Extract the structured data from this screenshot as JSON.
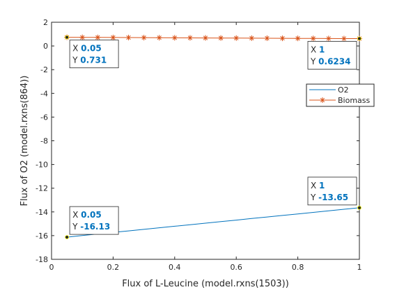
{
  "chart_data": {
    "type": "line",
    "xlabel": "Flux of L-Leucine (model.rxns(1503))",
    "ylabel": "Flux of O2 (model.rxns(864))",
    "xlim": [
      0,
      1
    ],
    "ylim": [
      -18,
      2
    ],
    "xticks": [
      0,
      0.2,
      0.4,
      0.6,
      0.8,
      1
    ],
    "xtick_labels": [
      "0",
      "0.2",
      "0.4",
      "0.6",
      "0.8",
      "1"
    ],
    "yticks": [
      2,
      0,
      -2,
      -4,
      -6,
      -8,
      -10,
      -12,
      -14,
      -16,
      -18
    ],
    "ytick_labels": [
      "2",
      "0",
      "-2",
      "-4",
      "-6",
      "-8",
      "-10",
      "-12",
      "-14",
      "-16",
      "-18"
    ],
    "grid": false,
    "legend_position": "right",
    "series": [
      {
        "name": "O2",
        "color": "#0072bd",
        "marker": "none",
        "x": [
          0.05,
          0.1,
          0.15,
          0.2,
          0.25,
          0.3,
          0.35,
          0.4,
          0.45,
          0.5,
          0.55,
          0.6,
          0.65,
          0.7,
          0.75,
          0.8,
          0.85,
          0.9,
          0.95,
          1.0
        ],
        "y": [
          -16.13,
          -15.99,
          -15.86,
          -15.73,
          -15.6,
          -15.47,
          -15.34,
          -15.21,
          -15.08,
          -14.95,
          -14.82,
          -14.69,
          -14.56,
          -14.43,
          -14.3,
          -14.17,
          -14.04,
          -13.91,
          -13.78,
          -13.65
        ]
      },
      {
        "name": "Biomass",
        "color": "#d95319",
        "marker": "asterisk",
        "x": [
          0.05,
          0.1,
          0.15,
          0.2,
          0.25,
          0.3,
          0.35,
          0.4,
          0.45,
          0.5,
          0.55,
          0.6,
          0.65,
          0.7,
          0.75,
          0.8,
          0.85,
          0.9,
          0.95,
          1.0
        ],
        "y": [
          0.731,
          0.725,
          0.719,
          0.713,
          0.707,
          0.701,
          0.695,
          0.689,
          0.683,
          0.677,
          0.671,
          0.665,
          0.659,
          0.653,
          0.647,
          0.641,
          0.635,
          0.629,
          0.623,
          0.6234
        ]
      }
    ],
    "datatips": [
      {
        "x_label": "X",
        "x_text": "0.05",
        "y_label": "Y",
        "y_text": "0.731",
        "x": 0.05,
        "y": 0.731
      },
      {
        "x_label": "X",
        "x_text": "1",
        "y_label": "Y",
        "y_text": "0.6234",
        "x": 1,
        "y": 0.6234
      },
      {
        "x_label": "X",
        "x_text": "1",
        "y_label": "Y",
        "y_text": "-13.65",
        "x": 1,
        "y": -13.65
      },
      {
        "x_label": "X",
        "x_text": "0.05",
        "y_label": "Y",
        "y_text": "-16.13",
        "x": 0.05,
        "y": -16.13
      }
    ]
  }
}
